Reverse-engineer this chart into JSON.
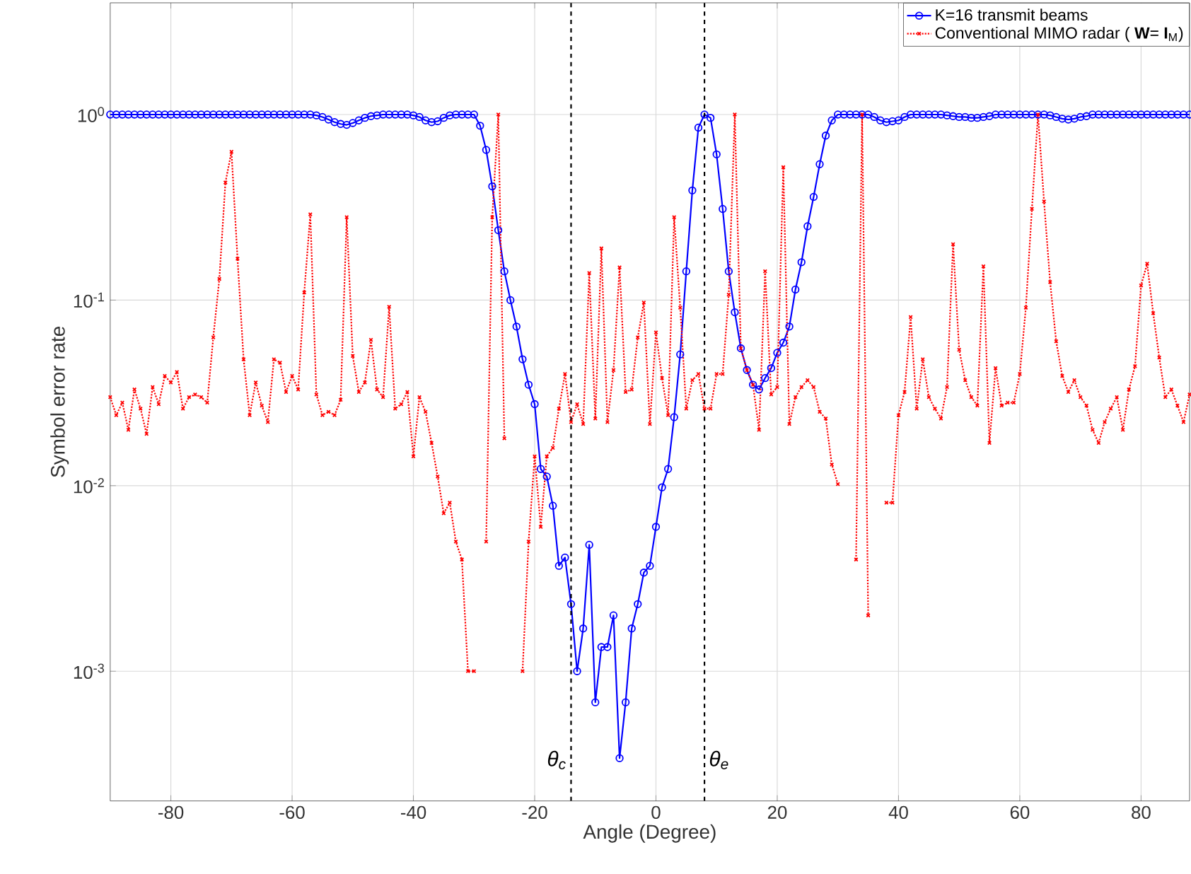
{
  "chart_data": {
    "type": "line",
    "xlabel": "Angle (Degree)",
    "ylabel": "Symbol error rate",
    "log": "y",
    "grid": true,
    "legend": "top right",
    "xlim": [
      -90,
      88
    ],
    "ylim": [
      0.0002,
      4
    ],
    "xticks": [
      -80,
      -60,
      -40,
      -20,
      0,
      20,
      40,
      60,
      80
    ],
    "yticks": [
      {
        "value": 0.001,
        "label": "10$^{-3}$"
      },
      {
        "value": 0.01,
        "label": "10$^{-2}$"
      },
      {
        "value": 0.1,
        "label": "10$^{-1}$"
      },
      {
        "value": 1,
        "label": "10$^{0}$"
      }
    ],
    "x": [
      -90,
      -89,
      -88,
      -87,
      -86,
      -85,
      -84,
      -83,
      -82,
      -81,
      -80,
      -79,
      -78,
      -77,
      -76,
      -75,
      -74,
      -73,
      -72,
      -71,
      -70,
      -69,
      -68,
      -67,
      -66,
      -65,
      -64,
      -63,
      -62,
      -61,
      -60,
      -59,
      -58,
      -57,
      -56,
      -55,
      -54,
      -53,
      -52,
      -51,
      -50,
      -49,
      -48,
      -47,
      -46,
      -45,
      -44,
      -43,
      -42,
      -41,
      -40,
      -39,
      -38,
      -37,
      -36,
      -35,
      -34,
      -33,
      -32,
      -31,
      -30,
      -29,
      -28,
      -27,
      -26,
      -25,
      -24,
      -23,
      -22,
      -21,
      -20,
      -19,
      -18,
      -17,
      -16,
      -15,
      -14,
      -13,
      -12,
      -11,
      -10,
      -9,
      -8,
      -7,
      -6,
      -5,
      -4,
      -3,
      -2,
      -1,
      0,
      1,
      2,
      3,
      4,
      5,
      6,
      7,
      8,
      9,
      10,
      11,
      12,
      13,
      14,
      15,
      16,
      17,
      18,
      19,
      20,
      21,
      22,
      23,
      24,
      25,
      26,
      27,
      28,
      29,
      30,
      31,
      32,
      33,
      34,
      35,
      36,
      37,
      38,
      39,
      40,
      41,
      42,
      43,
      44,
      45,
      46,
      47,
      48,
      49,
      50,
      51,
      52,
      53,
      54,
      55,
      56,
      57,
      58,
      59,
      60,
      61,
      62,
      63,
      64,
      65,
      66,
      67,
      68,
      69,
      70,
      71,
      72,
      73,
      74,
      75,
      76,
      77,
      78,
      79,
      80,
      81,
      82,
      83,
      84,
      85,
      86,
      87,
      88
    ],
    "series": [
      {
        "name": "K=16 transmit beams",
        "color": "#0000ff",
        "marker": "circle",
        "line_style": "solid",
        "values": [
          1.0,
          1.0,
          1.0,
          1.0,
          1.0,
          1.0,
          1.0,
          1.0,
          1.0,
          1.0,
          1.0,
          1.0,
          1.0,
          1.0,
          1.0,
          1.0,
          1.0,
          1.0,
          1.0,
          1.0,
          1.0,
          1.0,
          1.0,
          1.0,
          1.0,
          1.0,
          1.0,
          1.0,
          1.0,
          1.0,
          1.0,
          1.0,
          1.0,
          1.0,
          0.99,
          0.97,
          0.94,
          0.91,
          0.89,
          0.88,
          0.9,
          0.93,
          0.96,
          0.98,
          0.99,
          1.0,
          1.0,
          1.0,
          1.0,
          1.0,
          0.99,
          0.97,
          0.93,
          0.91,
          0.92,
          0.96,
          0.99,
          1.0,
          1.0,
          1.0,
          1.0,
          0.87,
          0.645,
          0.41,
          0.238,
          0.143,
          0.1,
          0.072,
          0.048,
          0.035,
          0.0275,
          0.0123,
          0.0112,
          0.0078,
          0.0037,
          0.0041,
          0.0023,
          0.001,
          0.0017,
          0.0048,
          0.00068,
          0.00135,
          0.00135,
          0.002,
          0.00034,
          0.00068,
          0.0017,
          0.0023,
          0.0034,
          0.0037,
          0.006,
          0.0098,
          0.0123,
          0.0234,
          0.051,
          0.143,
          0.39,
          0.85,
          1.0,
          0.96,
          0.61,
          0.31,
          0.143,
          0.086,
          0.055,
          0.042,
          0.035,
          0.033,
          0.038,
          0.043,
          0.052,
          0.059,
          0.072,
          0.114,
          0.16,
          0.25,
          0.36,
          0.54,
          0.77,
          0.93,
          1.0,
          1.0,
          1.0,
          1.0,
          1.0,
          1.0,
          0.97,
          0.93,
          0.91,
          0.92,
          0.93,
          0.97,
          1.0,
          1.0,
          1.0,
          1.0,
          1.0,
          1.0,
          0.99,
          0.98,
          0.97,
          0.97,
          0.96,
          0.96,
          0.97,
          0.98,
          1.0,
          1.0,
          1.0,
          1.0,
          1.0,
          1.0,
          1.0,
          1.0,
          1.0,
          0.99,
          0.97,
          0.95,
          0.94,
          0.95,
          0.97,
          0.98,
          1.0,
          1.0,
          1.0,
          1.0,
          1.0,
          1.0,
          1.0,
          1.0,
          1.0,
          1.0,
          1.0,
          1.0,
          1.0,
          1.0,
          1.0,
          1.0,
          1.0
        ]
      },
      {
        "name": "Conventional MIMO radar ( **W**= **I**$_{M}$)",
        "color": "#ff0000",
        "marker": "cross",
        "line_style": "dotted",
        "values": [
          0.03,
          0.024,
          0.028,
          0.02,
          0.033,
          0.026,
          0.019,
          0.034,
          0.0275,
          0.039,
          0.036,
          0.041,
          0.026,
          0.03,
          0.031,
          0.03,
          0.028,
          0.063,
          0.13,
          0.43,
          0.63,
          0.167,
          0.048,
          0.024,
          0.036,
          0.027,
          0.022,
          0.048,
          0.046,
          0.032,
          0.039,
          0.033,
          0.11,
          0.29,
          0.031,
          0.024,
          0.025,
          0.024,
          0.029,
          0.28,
          0.05,
          0.032,
          0.036,
          0.061,
          0.033,
          0.03,
          0.092,
          0.026,
          0.0275,
          0.032,
          0.0144,
          0.03,
          0.025,
          0.017,
          0.0112,
          0.0071,
          0.0081,
          0.005,
          0.004,
          0.001,
          0.001,
          null,
          0.005,
          0.28,
          1.0,
          0.018,
          null,
          null,
          0.001,
          0.005,
          0.0144,
          0.006,
          0.0144,
          0.016,
          0.026,
          0.04,
          0.022,
          0.0275,
          0.0215,
          0.14,
          0.023,
          0.19,
          0.022,
          0.042,
          0.15,
          0.032,
          0.033,
          0.063,
          0.097,
          0.0215,
          0.067,
          0.038,
          0.024,
          0.28,
          0.091,
          0.026,
          0.037,
          0.04,
          0.026,
          0.026,
          0.04,
          0.04,
          0.107,
          1.0,
          0.055,
          0.042,
          0.035,
          0.02,
          0.143,
          0.031,
          0.034,
          0.52,
          0.0215,
          0.03,
          0.034,
          0.037,
          0.034,
          0.025,
          0.023,
          0.013,
          0.0102,
          null,
          null,
          0.004,
          1.0,
          0.002,
          null,
          null,
          0.0081,
          0.0081,
          0.024,
          0.032,
          0.081,
          0.026,
          0.048,
          0.03,
          0.026,
          0.023,
          0.034,
          0.2,
          0.054,
          0.037,
          0.03,
          0.027,
          0.152,
          0.017,
          0.043,
          0.027,
          0.028,
          0.028,
          0.04,
          0.091,
          0.31,
          1.0,
          0.34,
          0.125,
          0.06,
          0.039,
          0.032,
          0.037,
          0.03,
          0.027,
          0.02,
          0.017,
          0.022,
          0.026,
          0.03,
          0.02,
          0.033,
          0.044,
          0.12,
          0.157,
          0.085,
          0.049,
          0.03,
          0.033,
          0.027,
          0.022,
          0.031
        ]
      }
    ],
    "ref_lines": [
      {
        "axis": "x",
        "value": -14,
        "label": "θ$_{c}$",
        "color": "#000000",
        "line_style": "dashed"
      },
      {
        "axis": "x",
        "value": 8,
        "label": "θ$_{e}$",
        "color": "#000000",
        "line_style": "dashed"
      }
    ]
  }
}
